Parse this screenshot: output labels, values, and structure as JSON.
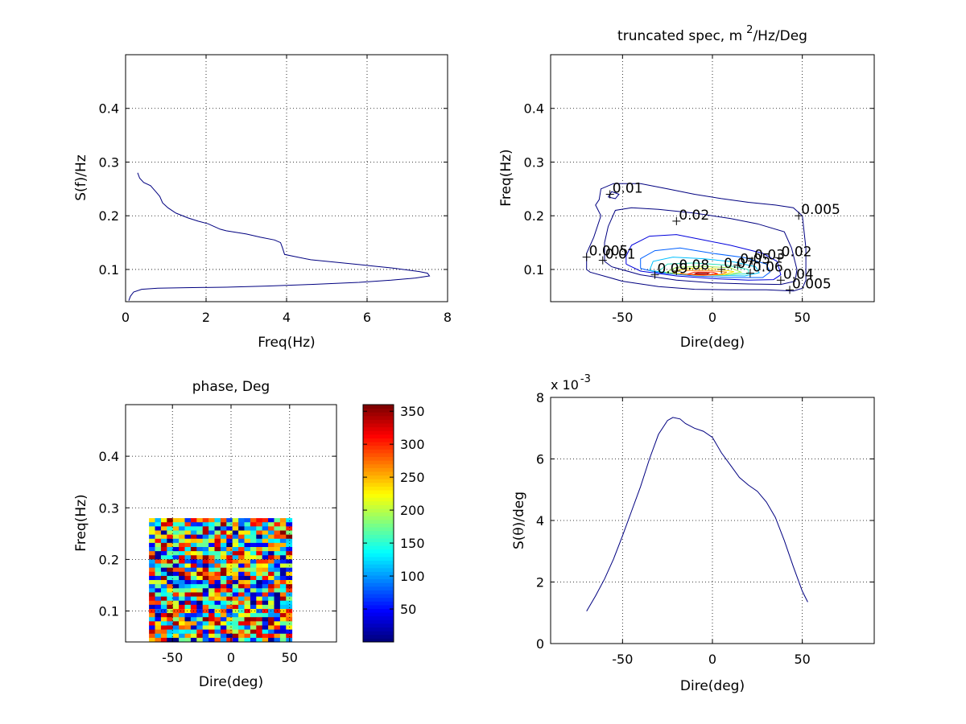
{
  "chart_data": [
    {
      "type": "line",
      "xlabel": "Freq(Hz)",
      "ylabel": "S(f)/Hz",
      "xlim": [
        0,
        8
      ],
      "ylim": [
        0.04,
        0.5
      ],
      "xticks": [
        "0",
        "2",
        "4",
        "6",
        "8"
      ],
      "yticks": [
        "0.1",
        "0.2",
        "0.3",
        "0.4"
      ],
      "grid": true,
      "series": [
        {
          "color": "#000080",
          "x": [
            0.3,
            0.35,
            0.45,
            0.62,
            0.75,
            0.85,
            0.92,
            1.05,
            1.25,
            1.55,
            1.8,
            2.05,
            2.2,
            2.35,
            2.5,
            2.75,
            3.0,
            3.35,
            3.7,
            3.85,
            3.9,
            3.95,
            4.2,
            4.6,
            5.0,
            5.4,
            5.8,
            6.2,
            6.6,
            7.0,
            7.3,
            7.5,
            7.55,
            7.2,
            6.6,
            5.8,
            4.6,
            3.5,
            2.5,
            1.5,
            0.8,
            0.4,
            0.2,
            0.12,
            0.08
          ],
          "y": [
            0.28,
            0.27,
            0.262,
            0.256,
            0.245,
            0.236,
            0.224,
            0.215,
            0.205,
            0.196,
            0.19,
            0.185,
            0.18,
            0.175,
            0.172,
            0.169,
            0.166,
            0.16,
            0.155,
            0.15,
            0.14,
            0.128,
            0.124,
            0.118,
            0.115,
            0.112,
            0.109,
            0.106,
            0.103,
            0.099,
            0.096,
            0.093,
            0.088,
            0.084,
            0.08,
            0.076,
            0.072,
            0.069,
            0.067,
            0.066,
            0.065,
            0.063,
            0.058,
            0.05,
            0.042
          ]
        }
      ]
    },
    {
      "type": "contour",
      "title_main": "truncated spec, m",
      "title_sup": "2",
      "title_rest": "/Hz/Deg",
      "xlabel": "Dire(deg)",
      "ylabel": "Freq(Hz)",
      "xlim": [
        -90,
        90
      ],
      "ylim": [
        0.04,
        0.5
      ],
      "xticks": [
        "-50",
        "0",
        "50"
      ],
      "yticks": [
        "0.1",
        "0.2",
        "0.3",
        "0.4"
      ],
      "grid": true,
      "contours": [
        {
          "level": 0.005,
          "color": "#000080",
          "points": [
            [
              -70,
              0.1
            ],
            [
              -68,
              0.095
            ],
            [
              -50,
              0.078
            ],
            [
              -30,
              0.068
            ],
            [
              -10,
              0.063
            ],
            [
              10,
              0.062
            ],
            [
              30,
              0.062
            ],
            [
              45,
              0.06
            ],
            [
              50,
              0.065
            ],
            [
              52,
              0.08
            ],
            [
              52,
              0.14
            ],
            [
              50,
              0.2
            ],
            [
              45,
              0.215
            ],
            [
              35,
              0.22
            ],
            [
              20,
              0.225
            ],
            [
              5,
              0.232
            ],
            [
              -10,
              0.24
            ],
            [
              -25,
              0.25
            ],
            [
              -40,
              0.26
            ],
            [
              -55,
              0.26
            ],
            [
              -62,
              0.25
            ],
            [
              -63,
              0.23
            ],
            [
              -65,
              0.22
            ],
            [
              -62,
              0.2
            ],
            [
              -66,
              0.16
            ],
            [
              -70,
              0.13
            ],
            [
              -70,
              0.1
            ]
          ]
        },
        {
          "level": 0.01,
          "color": "#000080",
          "points": [
            [
              -60,
              0.115
            ],
            [
              -56,
              0.105
            ],
            [
              -40,
              0.09
            ],
            [
              -20,
              0.08
            ],
            [
              0,
              0.075
            ],
            [
              20,
              0.073
            ],
            [
              38,
              0.072
            ],
            [
              46,
              0.078
            ],
            [
              47,
              0.1
            ],
            [
              44,
              0.14
            ],
            [
              40,
              0.17
            ],
            [
              25,
              0.185
            ],
            [
              10,
              0.195
            ],
            [
              -10,
              0.205
            ],
            [
              -30,
              0.212
            ],
            [
              -45,
              0.215
            ],
            [
              -54,
              0.21
            ],
            [
              -58,
              0.18
            ],
            [
              -60,
              0.15
            ],
            [
              -60,
              0.115
            ]
          ]
        },
        {
          "level": 0.01,
          "color": "#000080",
          "points": [
            [
              -58,
              0.235
            ],
            [
              -54,
              0.232
            ],
            [
              -52,
              0.24
            ],
            [
              -56,
              0.245
            ],
            [
              -58,
              0.235
            ]
          ]
        },
        {
          "level": 0.02,
          "color": "#0000dc",
          "points": [
            [
              -48,
              0.11
            ],
            [
              -40,
              0.097
            ],
            [
              -20,
              0.088
            ],
            [
              0,
              0.083
            ],
            [
              20,
              0.08
            ],
            [
              34,
              0.081
            ],
            [
              38,
              0.09
            ],
            [
              36,
              0.115
            ],
            [
              28,
              0.13
            ],
            [
              10,
              0.145
            ],
            [
              -5,
              0.155
            ],
            [
              -20,
              0.165
            ],
            [
              -35,
              0.162
            ],
            [
              -45,
              0.145
            ],
            [
              -48,
              0.125
            ],
            [
              -48,
              0.11
            ]
          ]
        },
        {
          "level": 0.03,
          "color": "#0060ff",
          "points": [
            [
              -40,
              0.102
            ],
            [
              -30,
              0.094
            ],
            [
              -10,
              0.088
            ],
            [
              10,
              0.085
            ],
            [
              28,
              0.085
            ],
            [
              32,
              0.095
            ],
            [
              30,
              0.11
            ],
            [
              18,
              0.122
            ],
            [
              0,
              0.13
            ],
            [
              -18,
              0.14
            ],
            [
              -32,
              0.135
            ],
            [
              -40,
              0.12
            ],
            [
              -40,
              0.102
            ]
          ]
        },
        {
          "level": 0.04,
          "color": "#00c0ff",
          "points": [
            [
              -35,
              0.098
            ],
            [
              -20,
              0.092
            ],
            [
              0,
              0.089
            ],
            [
              18,
              0.088
            ],
            [
              26,
              0.094
            ],
            [
              24,
              0.105
            ],
            [
              12,
              0.114
            ],
            [
              -5,
              0.12
            ],
            [
              -22,
              0.123
            ],
            [
              -33,
              0.115
            ],
            [
              -35,
              0.098
            ]
          ]
        },
        {
          "level": 0.05,
          "color": "#30e0c0",
          "points": [
            [
              -30,
              0.096
            ],
            [
              -15,
              0.091
            ],
            [
              5,
              0.09
            ],
            [
              20,
              0.092
            ],
            [
              20,
              0.1
            ],
            [
              8,
              0.108
            ],
            [
              -10,
              0.112
            ],
            [
              -25,
              0.11
            ],
            [
              -30,
              0.096
            ]
          ]
        },
        {
          "level": 0.06,
          "color": "#a0f050",
          "points": [
            [
              -26,
              0.094
            ],
            [
              -10,
              0.09
            ],
            [
              8,
              0.09
            ],
            [
              16,
              0.095
            ],
            [
              10,
              0.103
            ],
            [
              -5,
              0.106
            ],
            [
              -20,
              0.104
            ],
            [
              -26,
              0.094
            ]
          ]
        },
        {
          "level": 0.07,
          "color": "#ffe000",
          "points": [
            [
              -22,
              0.093
            ],
            [
              -8,
              0.089
            ],
            [
              6,
              0.09
            ],
            [
              12,
              0.096
            ],
            [
              2,
              0.101
            ],
            [
              -12,
              0.102
            ],
            [
              -20,
              0.098
            ],
            [
              -22,
              0.093
            ]
          ]
        },
        {
          "level": 0.08,
          "color": "#ff8000",
          "points": [
            [
              -18,
              0.092
            ],
            [
              -5,
              0.089
            ],
            [
              5,
              0.091
            ],
            [
              8,
              0.095
            ],
            [
              -2,
              0.098
            ],
            [
              -14,
              0.098
            ],
            [
              -18,
              0.092
            ]
          ]
        },
        {
          "level": 0.09,
          "color": "#ff2000",
          "points": [
            [
              -14,
              0.091
            ],
            [
              -3,
              0.09
            ],
            [
              3,
              0.092
            ],
            [
              0,
              0.095
            ],
            [
              -10,
              0.095
            ],
            [
              -14,
              0.091
            ]
          ]
        },
        {
          "level": 0.1,
          "color": "#a00000",
          "points": [
            [
              -10,
              0.092
            ],
            [
              -3,
              0.091
            ],
            [
              -2,
              0.093
            ],
            [
              -8,
              0.094
            ],
            [
              -10,
              0.092
            ]
          ]
        }
      ],
      "labels": [
        {
          "text": "0.01",
          "x": -57,
          "y": 0.24
        },
        {
          "text": "0.02",
          "x": -20,
          "y": 0.19
        },
        {
          "text": "0.005",
          "x": 48,
          "y": 0.2
        },
        {
          "text": "0.005",
          "x": -70,
          "y": 0.123
        },
        {
          "text": "0.01",
          "x": -61,
          "y": 0.117
        },
        {
          "text": "0.02",
          "x": 37,
          "y": 0.122
        },
        {
          "text": "0.03",
          "x": 22,
          "y": 0.116
        },
        {
          "text": "0.09",
          "x": -32,
          "y": 0.09
        },
        {
          "text": "0.08",
          "x": -20,
          "y": 0.097
        },
        {
          "text": "0.07",
          "x": 5,
          "y": 0.1
        },
        {
          "text": "0.05",
          "x": 14,
          "y": 0.108
        },
        {
          "text": "0.06",
          "x": 21,
          "y": 0.093
        },
        {
          "text": "0.04",
          "x": 38,
          "y": 0.08
        },
        {
          "text": "0.005",
          "x": 43,
          "y": 0.062
        }
      ]
    },
    {
      "type": "heatmap",
      "title": "phase, Deg",
      "xlabel": "Dire(deg)",
      "ylabel": "Freq(Hz)",
      "xlim": [
        -90,
        90
      ],
      "ylim": [
        0.04,
        0.5
      ],
      "xticks": [
        "-50",
        "0",
        "50"
      ],
      "yticks": [
        "0.1",
        "0.2",
        "0.3",
        "0.4"
      ],
      "grid": true,
      "x_range": [
        -70,
        52
      ],
      "y_range": [
        0.04,
        0.28
      ],
      "nx": 24,
      "ny": 30,
      "value_range": [
        0,
        360
      ],
      "colorbar_ticks": [
        "50",
        "100",
        "150",
        "200",
        "250",
        "300",
        "350"
      ],
      "colormap": "jet"
    },
    {
      "type": "line",
      "xlabel": "Dire(deg)",
      "ylabel_pre": "S(",
      "ylabel_sym": "θ",
      "ylabel_post": ")/deg",
      "exponent_base": "x 10",
      "exponent_power": "-3",
      "xlim": [
        -90,
        90
      ],
      "ylim": [
        0,
        8
      ],
      "xticks": [
        "-50",
        "0",
        "50"
      ],
      "yticks": [
        "0",
        "2",
        "4",
        "6",
        "8"
      ],
      "grid": true,
      "series": [
        {
          "color": "#000080",
          "x": [
            -70,
            -65,
            -60,
            -55,
            -50,
            -45,
            -40,
            -35,
            -30,
            -25,
            -22,
            -18,
            -15,
            -10,
            -5,
            0,
            5,
            10,
            15,
            20,
            25,
            30,
            35,
            40,
            45,
            50,
            53
          ],
          "y": [
            1.05,
            1.55,
            2.1,
            2.75,
            3.5,
            4.3,
            5.1,
            6.0,
            6.8,
            7.25,
            7.35,
            7.3,
            7.15,
            7.0,
            6.9,
            6.7,
            6.2,
            5.8,
            5.4,
            5.15,
            4.95,
            4.6,
            4.1,
            3.35,
            2.5,
            1.7,
            1.35
          ]
        }
      ]
    }
  ]
}
